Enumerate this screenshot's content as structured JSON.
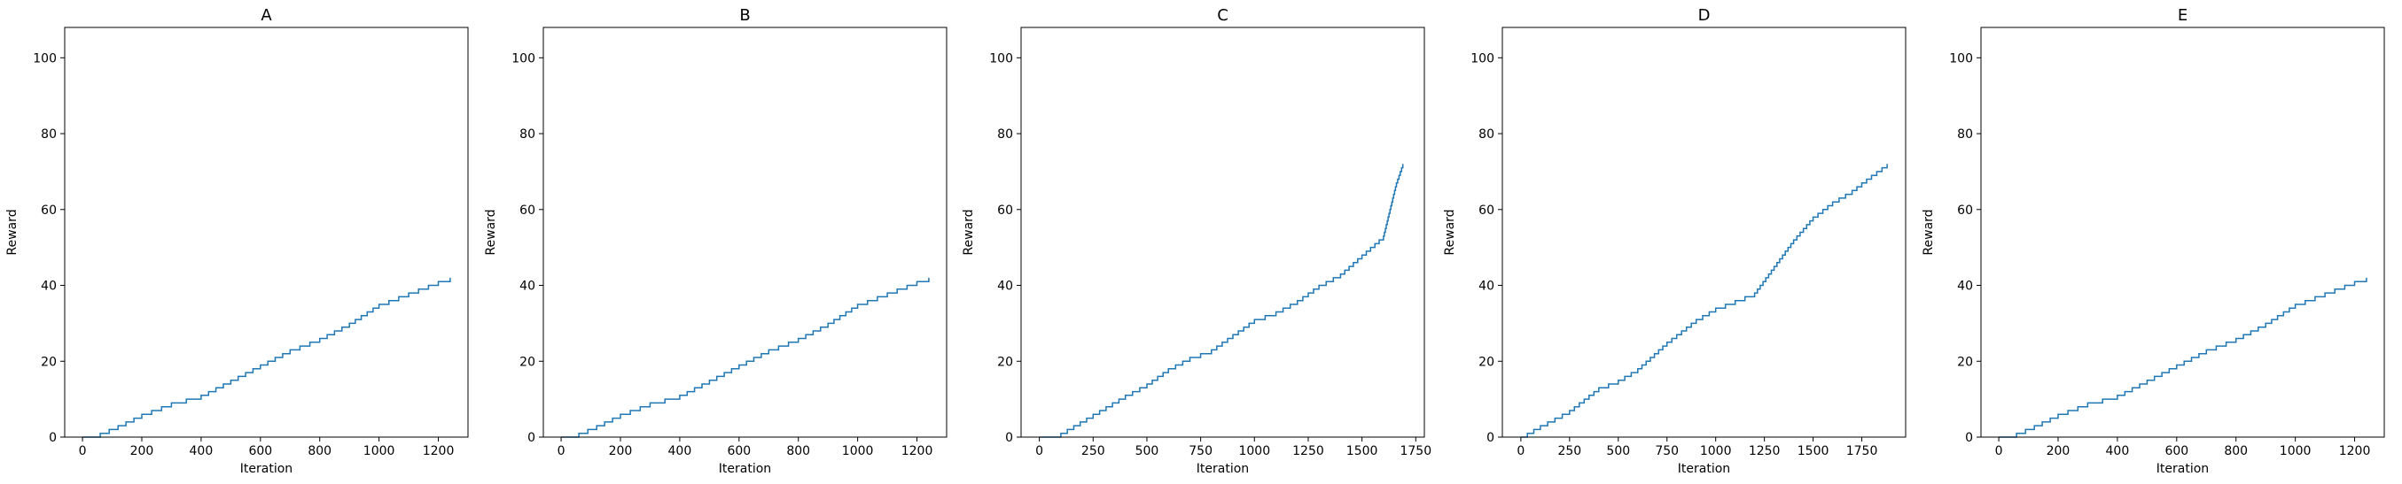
{
  "chart_data": [
    {
      "type": "line",
      "title": "A",
      "xlabel": "Iteration",
      "ylabel": "Reward",
      "xlim": [
        -60,
        1300
      ],
      "ylim": [
        0,
        108
      ],
      "xticks": [
        0,
        200,
        400,
        600,
        800,
        1000,
        1200
      ],
      "yticks": [
        0,
        20,
        40,
        60,
        80,
        100
      ],
      "grid": false,
      "step": true,
      "color": "#1f77b4",
      "x": [
        0,
        60,
        120,
        200,
        300,
        400,
        500,
        600,
        700,
        800,
        900,
        1000,
        1100,
        1200,
        1240
      ],
      "y": [
        0,
        1,
        3,
        6,
        9,
        11,
        15,
        19,
        23,
        26,
        30,
        35,
        38,
        41,
        42
      ]
    },
    {
      "type": "line",
      "title": "B",
      "xlabel": "Iteration",
      "ylabel": "Reward",
      "xlim": [
        -60,
        1300
      ],
      "ylim": [
        0,
        108
      ],
      "xticks": [
        0,
        200,
        400,
        600,
        800,
        1000,
        1200
      ],
      "yticks": [
        0,
        20,
        40,
        60,
        80,
        100
      ],
      "grid": false,
      "step": true,
      "color": "#1f77b4",
      "x": [
        0,
        60,
        120,
        200,
        300,
        400,
        500,
        600,
        700,
        800,
        900,
        1000,
        1100,
        1200,
        1240
      ],
      "y": [
        0,
        1,
        3,
        6,
        9,
        11,
        15,
        19,
        23,
        26,
        30,
        35,
        38,
        41,
        42
      ]
    },
    {
      "type": "line",
      "title": "C",
      "xlabel": "Iteration",
      "ylabel": "Reward",
      "xlim": [
        -85,
        1790
      ],
      "ylim": [
        0,
        108
      ],
      "xticks": [
        0,
        250,
        500,
        750,
        1000,
        1250,
        1500,
        1750
      ],
      "yticks": [
        0,
        20,
        40,
        60,
        80,
        100
      ],
      "grid": false,
      "step": true,
      "color": "#1f77b4",
      "x": [
        0,
        100,
        250,
        400,
        500,
        600,
        700,
        800,
        900,
        1000,
        1100,
        1200,
        1300,
        1400,
        1500,
        1600,
        1630,
        1660,
        1690
      ],
      "y": [
        0,
        1,
        6,
        11,
        14,
        18,
        21,
        23,
        27,
        31,
        33,
        36,
        40,
        43,
        48,
        53,
        60,
        67,
        72
      ]
    },
    {
      "type": "line",
      "title": "D",
      "xlabel": "Iteration",
      "ylabel": "Reward",
      "xlim": [
        -95,
        1975
      ],
      "ylim": [
        0,
        108
      ],
      "xticks": [
        0,
        250,
        500,
        750,
        1000,
        1250,
        1500,
        1750
      ],
      "yticks": [
        0,
        20,
        40,
        60,
        80,
        100
      ],
      "grid": false,
      "step": true,
      "color": "#1f77b4",
      "x": [
        0,
        100,
        250,
        400,
        500,
        600,
        750,
        900,
        1000,
        1100,
        1200,
        1300,
        1400,
        1500,
        1600,
        1700,
        1800,
        1880
      ],
      "y": [
        0,
        3,
        7,
        13,
        15,
        18,
        25,
        31,
        34,
        36,
        38,
        45,
        52,
        58,
        62,
        65,
        69,
        72
      ]
    },
    {
      "type": "line",
      "title": "E",
      "xlabel": "Iteration",
      "ylabel": "Reward",
      "xlim": [
        -60,
        1300
      ],
      "ylim": [
        0,
        108
      ],
      "xticks": [
        0,
        200,
        400,
        600,
        800,
        1000,
        1200
      ],
      "yticks": [
        0,
        20,
        40,
        60,
        80,
        100
      ],
      "grid": false,
      "step": true,
      "color": "#1f77b4",
      "x": [
        0,
        60,
        120,
        200,
        300,
        400,
        500,
        600,
        700,
        800,
        900,
        1000,
        1100,
        1200,
        1240
      ],
      "y": [
        0,
        1,
        3,
        6,
        9,
        11,
        15,
        19,
        23,
        26,
        30,
        35,
        38,
        41,
        42
      ]
    }
  ]
}
